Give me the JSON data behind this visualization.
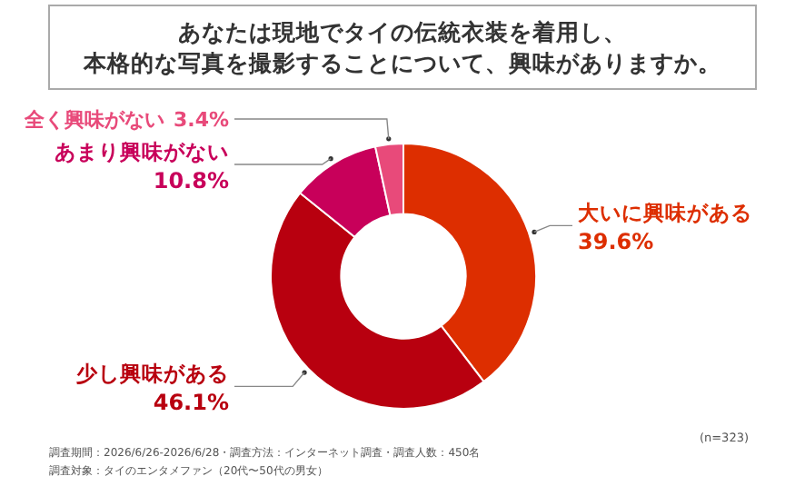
{
  "chart_data": {
    "type": "donut",
    "title": "あなたは現地でタイの伝統衣装を着用し、本格的な写真を撮影することについて、興味がありますか。",
    "categories": [
      "大いに興味がある",
      "少し興味がある",
      "あまり興味がない",
      "全く興味がない"
    ],
    "values": [
      39.6,
      46.1,
      10.8,
      3.4
    ],
    "colors": [
      "#dd2e00",
      "#b8000f",
      "#c8005a",
      "#e84a7a"
    ],
    "value_labels": [
      "39.6%",
      "46.1%",
      "10.8%",
      "3.4%"
    ],
    "annotations": [
      "(n=323)",
      "調査期間：2026/6/26-2026/6/28・調査方法：インターネット調査・調査人数：450名",
      "調査対象：タイのエンタメファン（20代〜50代の男女）"
    ]
  }
}
